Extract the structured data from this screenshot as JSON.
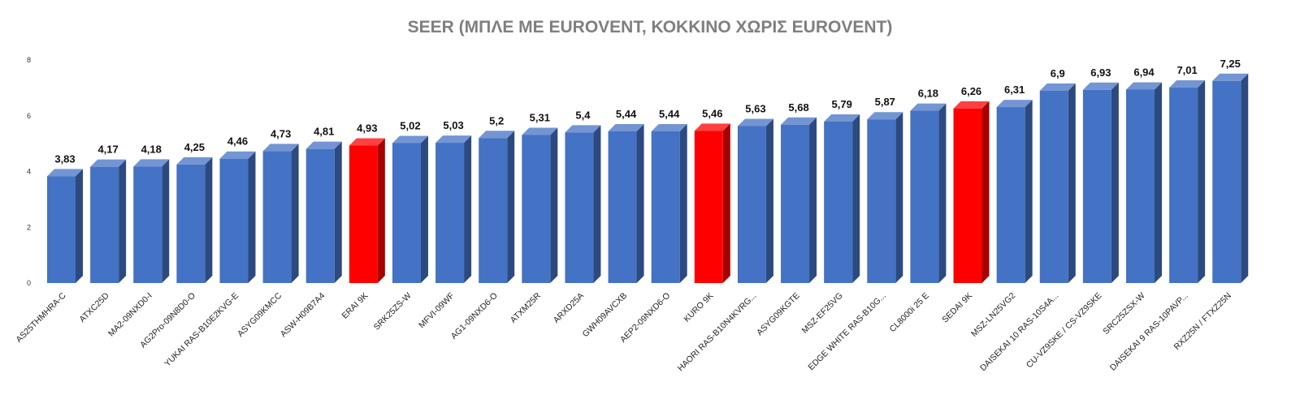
{
  "chart_data": {
    "type": "bar",
    "title": "SEER (ΜΠΛΕ ΜΕ EUROVENT, ΚΟΚΚΙΝΟ ΧΩΡΙΣ EUROVENT)",
    "xlabel": "",
    "ylabel": "",
    "ylim": [
      0,
      8
    ],
    "yticks": [
      "0",
      "2",
      "4",
      "6",
      "8"
    ],
    "grid": false,
    "legend": "none",
    "colors": {
      "eurovent": "#4472c4",
      "no_eurovent": "#ff0000"
    },
    "categories": [
      "AS25THMHRA-C",
      "ATXC25D",
      "MA2-09NXD0-I",
      "AG2Pro-09N8D0-O",
      "YUKAI RAS-B10E2KVG-E",
      "ASYG09KMCC",
      "ASW-H09B7A4",
      "ERAI 9K",
      "SRK25ZS-W",
      "MFVI-09WF",
      "AG1-09NXD6-O",
      "ATXM25R",
      "ARXD25A",
      "GWH09AVCXB",
      "AEP2-09NXD6-O",
      "KURO 9K",
      "HAORI RAS-B10N4KVRG...",
      "ASYG09KGTE",
      "MSZ-EF25VG",
      "EDGE WHITE RAS-B10G...",
      "CL8000i 25 E",
      "SEDAI 9K",
      "MSZ-LN25VG2",
      "DAISEKAI 10 RAS-10S4A...",
      "CU-VZ9SKE / CS-VZ9SKE",
      "SRC25ZSX-W",
      "DAISEKAI 9 RAS-10PAVP...",
      "RXZ25N / FTXZ25N"
    ],
    "values": [
      3.83,
      4.17,
      4.18,
      4.25,
      4.46,
      4.73,
      4.81,
      4.93,
      5.02,
      5.03,
      5.2,
      5.31,
      5.4,
      5.44,
      5.44,
      5.46,
      5.63,
      5.68,
      5.79,
      5.87,
      6.18,
      6.26,
      6.31,
      6.9,
      6.93,
      6.94,
      7.01,
      7.25
    ],
    "value_labels": [
      "3,83",
      "4,17",
      "4,18",
      "4,25",
      "4,46",
      "4,73",
      "4,81",
      "4,93",
      "5,02",
      "5,03",
      "5,2",
      "5,31",
      "5,4",
      "5,44",
      "5,44",
      "5,46",
      "5,63",
      "5,68",
      "5,79",
      "5,87",
      "6,18",
      "6,26",
      "6,31",
      "6,9",
      "6,93",
      "6,94",
      "7,01",
      "7,25"
    ],
    "eurovent": [
      true,
      true,
      true,
      true,
      true,
      true,
      true,
      false,
      true,
      true,
      true,
      true,
      true,
      true,
      true,
      false,
      true,
      true,
      true,
      true,
      true,
      false,
      true,
      true,
      true,
      true,
      true,
      true
    ]
  }
}
